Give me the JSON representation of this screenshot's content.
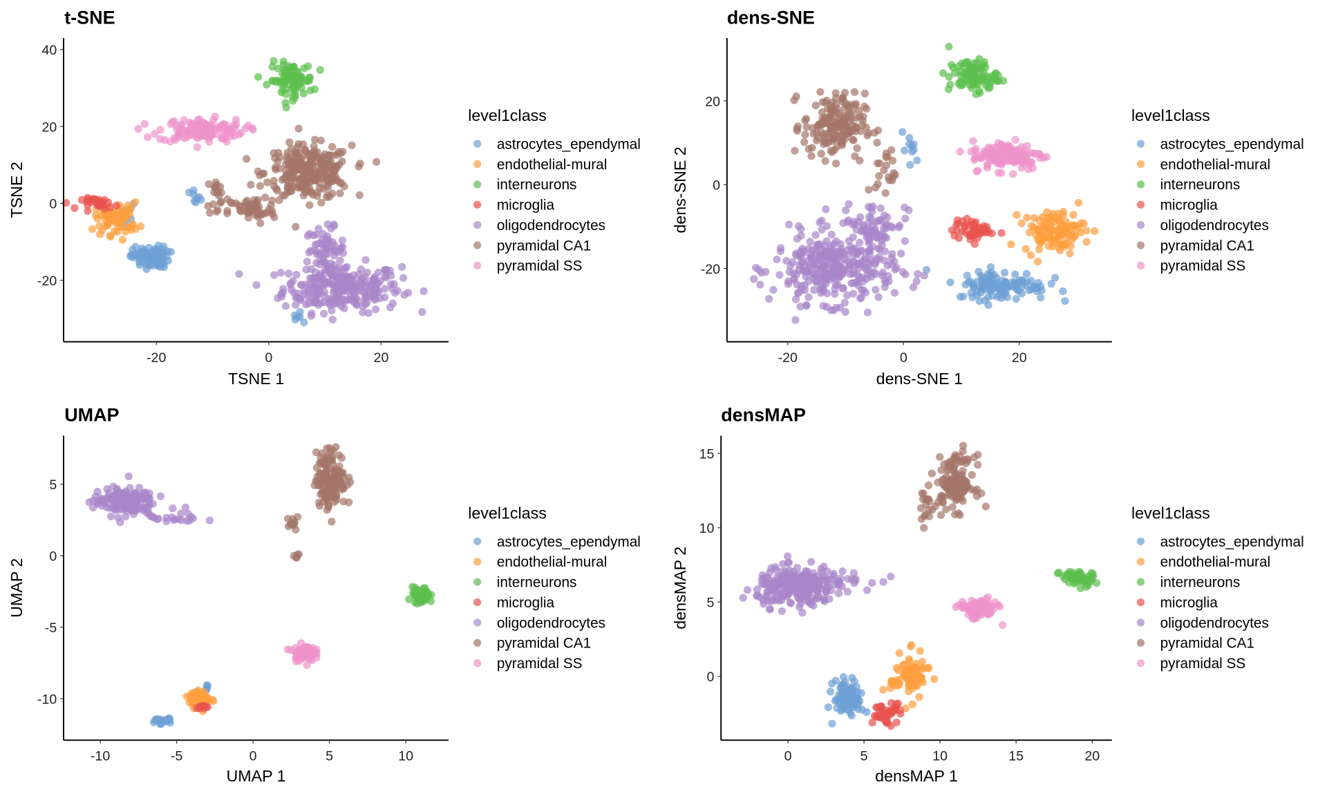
{
  "legend": {
    "title": "level1class",
    "items": [
      "astrocytes_ependymal",
      "endothelial-mural",
      "interneurons",
      "microglia",
      "oligodendrocytes",
      "pyramidal CA1",
      "pyramidal SS"
    ],
    "colors": [
      "#6e9fd4",
      "#fd9e3e",
      "#5cbf4f",
      "#e8534f",
      "#a886c9",
      "#a4766a",
      "#ee93cb"
    ]
  },
  "chart_data": [
    {
      "type": "scatter",
      "title": "t-SNE",
      "xlabel": "TSNE 1",
      "ylabel": "TSNE 2",
      "xticks": [
        "-20",
        "0",
        "20"
      ],
      "yticks": [
        "40",
        "20",
        "0",
        "-20"
      ],
      "xtick_values": [
        -20,
        0,
        20
      ],
      "ytick_values": [
        40,
        20,
        0,
        -20
      ],
      "xlim": [
        -36.5,
        32
      ],
      "ylim": [
        -36,
        43
      ],
      "clusters": {
        "astrocytes_ependymal": [
          [
            -21,
            -14,
            2.3,
            2,
            90
          ],
          [
            -13,
            1,
            0.8,
            1.8,
            8
          ],
          [
            -25,
            -4,
            1.5,
            3,
            8
          ],
          [
            5,
            -30,
            0.8,
            1.5,
            6
          ]
        ],
        "endothelial-mural": [
          [
            -27,
            -4,
            2.8,
            3,
            70
          ]
        ],
        "interneurons": [
          [
            4,
            32,
            2.8,
            3.2,
            90
          ]
        ],
        "microglia": [
          [
            -30,
            0,
            2.3,
            1,
            30
          ]
        ],
        "oligodendrocytes": [
          [
            13,
            -22,
            7.5,
            4.5,
            260
          ],
          [
            10,
            -12,
            2.5,
            4,
            60
          ]
        ],
        "pyramidal CA1": [
          [
            7,
            8,
            5.5,
            5,
            260
          ],
          [
            -3,
            -2,
            3,
            2.5,
            50
          ],
          [
            -9,
            2,
            1.5,
            4,
            20
          ]
        ],
        "pyramidal SS": [
          [
            -12,
            19,
            5.5,
            2.2,
            130
          ]
        ]
      }
    },
    {
      "type": "scatter",
      "title": "dens-SNE",
      "xlabel": "dens-SNE 1",
      "ylabel": "dens-SNE 2",
      "xticks": [
        "-20",
        "0",
        "20"
      ],
      "yticks": [
        "20",
        "0",
        "-20"
      ],
      "xtick_values": [
        -20,
        0,
        20
      ],
      "ytick_values": [
        20,
        0,
        -20
      ],
      "xlim": [
        -30.5,
        36
      ],
      "ylim": [
        -37.5,
        35
      ],
      "clusters": {
        "astrocytes_ependymal": [
          [
            17,
            -24,
            5.5,
            2.5,
            120
          ],
          [
            1,
            8,
            1.2,
            3,
            10
          ]
        ],
        "endothelial-mural": [
          [
            26,
            -11,
            3.8,
            3.5,
            110
          ]
        ],
        "interneurons": [
          [
            12,
            26,
            3,
            2.8,
            90
          ]
        ],
        "microglia": [
          [
            12,
            -11,
            2.5,
            1.8,
            50
          ]
        ],
        "oligodendrocytes": [
          [
            -12,
            -20,
            7.5,
            6,
            320
          ],
          [
            -5,
            -9,
            4,
            3.5,
            60
          ]
        ],
        "pyramidal CA1": [
          [
            -12,
            14,
            3.8,
            5.5,
            170
          ],
          [
            -3,
            3,
            1.3,
            4,
            20
          ]
        ],
        "pyramidal SS": [
          [
            18,
            7,
            4.5,
            2.5,
            130
          ]
        ]
      }
    },
    {
      "type": "scatter",
      "title": "UMAP",
      "xlabel": "UMAP 1",
      "ylabel": "UMAP 2",
      "xticks": [
        "-10",
        "-5",
        "0",
        "5",
        "10"
      ],
      "yticks": [
        "5",
        "0",
        "-5",
        "-10"
      ],
      "xtick_values": [
        -10,
        -5,
        0,
        5,
        10
      ],
      "ytick_values": [
        5,
        0,
        -5,
        -10
      ],
      "xlim": [
        -12.4,
        12.8
      ],
      "ylim": [
        -12.9,
        8.4
      ],
      "clusters": {
        "astrocytes_ependymal": [
          [
            -6,
            -11.5,
            0.5,
            0.2,
            20
          ],
          [
            -3,
            -9.3,
            0.2,
            0.3,
            5
          ]
        ],
        "endothelial-mural": [
          [
            -3.5,
            -10,
            0.5,
            0.4,
            60
          ]
        ],
        "interneurons": [
          [
            11,
            -2.8,
            0.4,
            0.4,
            60
          ]
        ],
        "microglia": [
          [
            -3.3,
            -10.6,
            0.3,
            0.2,
            8
          ]
        ],
        "oligodendrocytes": [
          [
            -8.5,
            3.8,
            1.4,
            0.7,
            160
          ],
          [
            -5,
            2.7,
            1.3,
            0.4,
            20
          ]
        ],
        "pyramidal CA1": [
          [
            5.1,
            5.4,
            0.7,
            1.4,
            160
          ],
          [
            2.7,
            2.2,
            0.3,
            0.4,
            10
          ],
          [
            2.8,
            0,
            0.2,
            0.3,
            5
          ]
        ],
        "pyramidal SS": [
          [
            3.3,
            -6.8,
            0.5,
            0.4,
            80
          ]
        ]
      }
    },
    {
      "type": "scatter",
      "title": "densMAP",
      "xlabel": "densMAP 1",
      "ylabel": "densMAP 2",
      "xticks": [
        "0",
        "5",
        "10",
        "15",
        "20"
      ],
      "yticks": [
        "15",
        "10",
        "5",
        "0"
      ],
      "xtick_values": [
        0,
        5,
        10,
        15,
        20
      ],
      "ytick_values": [
        15,
        10,
        5,
        0
      ],
      "xlim": [
        -4.4,
        21.3
      ],
      "ylim": [
        -4.3,
        16.2
      ],
      "clusters": {
        "astrocytes_ependymal": [
          [
            4,
            -1.5,
            0.7,
            0.9,
            80
          ]
        ],
        "endothelial-mural": [
          [
            8,
            0,
            0.9,
            1.1,
            80
          ]
        ],
        "interneurons": [
          [
            19,
            6.6,
            0.8,
            0.4,
            60
          ]
        ],
        "microglia": [
          [
            6.5,
            -2.5,
            0.7,
            0.5,
            40
          ]
        ],
        "oligodendrocytes": [
          [
            0.5,
            6,
            1.8,
            0.9,
            250
          ],
          [
            3,
            6.5,
            1.8,
            0.5,
            40
          ]
        ],
        "pyramidal CA1": [
          [
            11,
            13,
            0.9,
            1.3,
            130
          ],
          [
            9,
            11.5,
            0.4,
            0.9,
            15
          ]
        ],
        "pyramidal SS": [
          [
            12.5,
            4.5,
            0.9,
            0.5,
            80
          ]
        ]
      }
    }
  ]
}
